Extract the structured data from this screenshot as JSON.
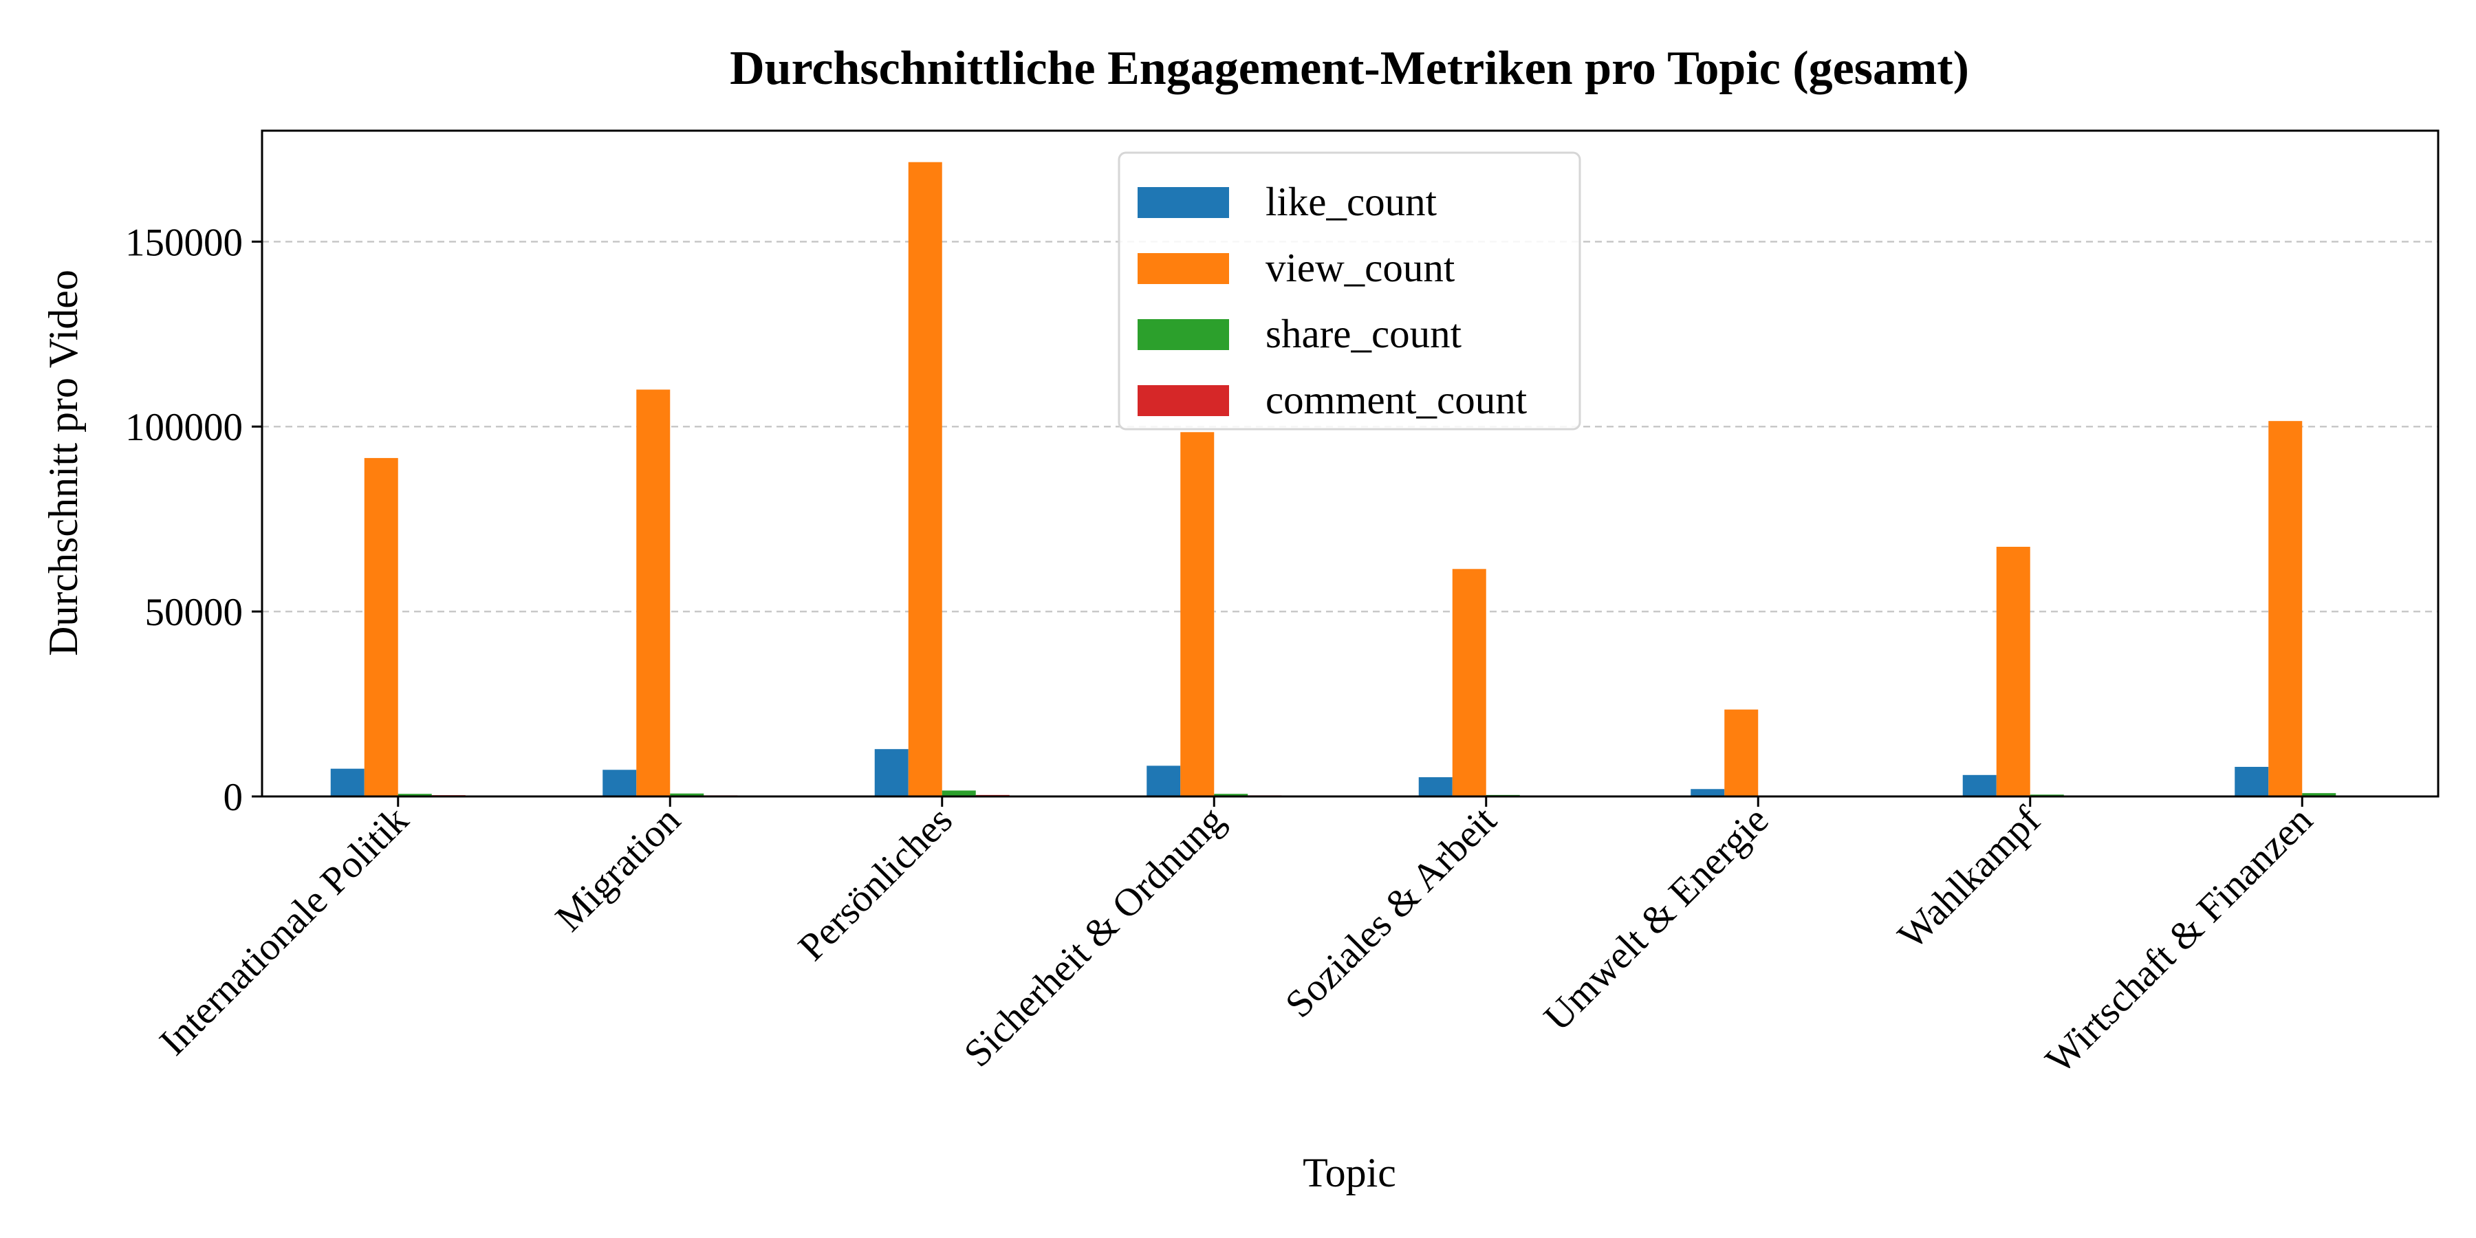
{
  "chart_data": {
    "type": "bar",
    "title": "Durchschnittliche Engagement-Metriken pro Topic (gesamt)",
    "xlabel": "Topic",
    "ylabel": "Durchschnitt pro Video",
    "ylim": [
      0,
      180000
    ],
    "yticks": [
      0,
      50000,
      100000,
      150000
    ],
    "ytick_labels": [
      "0",
      "50000",
      "100000",
      "150000"
    ],
    "grid": "y, dashed",
    "legend_position": "top-center",
    "categories": [
      "Internationale Politik",
      "Migration",
      "Persönliches",
      "Sicherheit & Ordnung",
      "Soziales & Arbeit",
      "Umwelt & Energie",
      "Wahlkampf",
      "Wirtschaft & Finanzen"
    ],
    "series": [
      {
        "name": "like_count",
        "color": "#1f77b4",
        "values": [
          7500,
          7200,
          12800,
          8300,
          5200,
          2000,
          5800,
          8000
        ]
      },
      {
        "name": "view_count",
        "color": "#ff7f0e",
        "values": [
          91500,
          110000,
          171500,
          98500,
          61500,
          23500,
          67500,
          101500
        ]
      },
      {
        "name": "share_count",
        "color": "#2ca02c",
        "values": [
          700,
          800,
          1600,
          700,
          400,
          100,
          500,
          900
        ]
      },
      {
        "name": "comment_count",
        "color": "#d62728",
        "values": [
          350,
          300,
          400,
          300,
          200,
          80,
          250,
          250
        ]
      }
    ]
  }
}
